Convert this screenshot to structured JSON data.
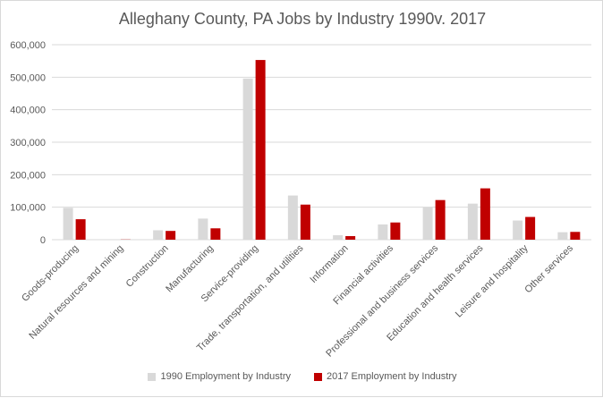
{
  "chart_data": {
    "type": "bar",
    "title": "Alleghany County, PA Jobs by Industry 1990v. 2017",
    "xlabel": "",
    "ylabel": "",
    "ylim": [
      0,
      600000
    ],
    "yticks": [
      "0",
      "100,000",
      "200,000",
      "300,000",
      "400,000",
      "500,000",
      "600,000"
    ],
    "ytick_values": [
      0,
      100000,
      200000,
      300000,
      400000,
      500000,
      600000
    ],
    "grid": true,
    "legend_position": "bottom",
    "categories": [
      "Goods-producing",
      "Natural resources and mining",
      "Construction",
      "Manufacturing",
      "Service-providing",
      "Trade, transportation, and utilities",
      "Information",
      "Financial activities",
      "Professional and business services",
      "Education and health services",
      "Leisure and hospitality",
      "Other services"
    ],
    "series": [
      {
        "name": "1990 Employment by Industry",
        "color": "#d9d9d9",
        "values": [
          98000,
          700,
          29000,
          65000,
          496000,
          136000,
          14000,
          47000,
          100000,
          111000,
          59000,
          23000
        ]
      },
      {
        "name": "2017 Employment by Industry",
        "color": "#c00000",
        "values": [
          63000,
          600,
          27000,
          35000,
          553000,
          108000,
          11000,
          53000,
          122000,
          158000,
          70000,
          24000
        ]
      }
    ]
  }
}
